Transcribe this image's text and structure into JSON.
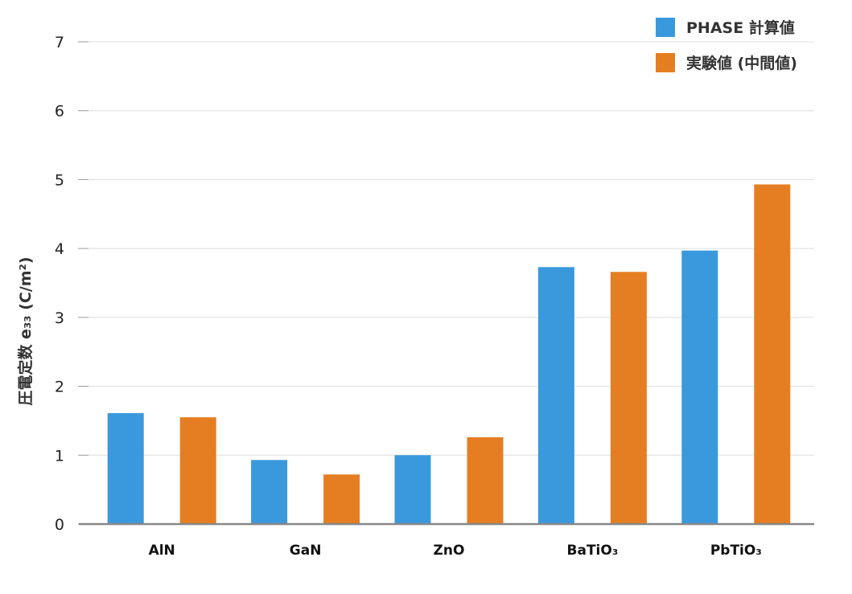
{
  "chart_data": {
    "type": "bar",
    "ylabel": "圧電定数 e₃₃ (C/m²)",
    "categories": [
      "AlN",
      "GaN",
      "ZnO",
      "BaTiO₃",
      "PbTiO₃"
    ],
    "series": [
      {
        "name": "PHASE 計算値",
        "color": "#3a99dc",
        "values": [
          1.61,
          0.93,
          1.0,
          3.73,
          3.97
        ]
      },
      {
        "name": "実験値 (中間値)",
        "color": "#e57e22",
        "values": [
          1.55,
          0.72,
          1.26,
          3.66,
          4.93
        ]
      }
    ],
    "ylim": [
      0,
      7
    ],
    "yticks": [
      "0",
      "1",
      "2",
      "3",
      "4",
      "5",
      "6",
      "7"
    ],
    "grid": true,
    "legend": "top-right"
  }
}
